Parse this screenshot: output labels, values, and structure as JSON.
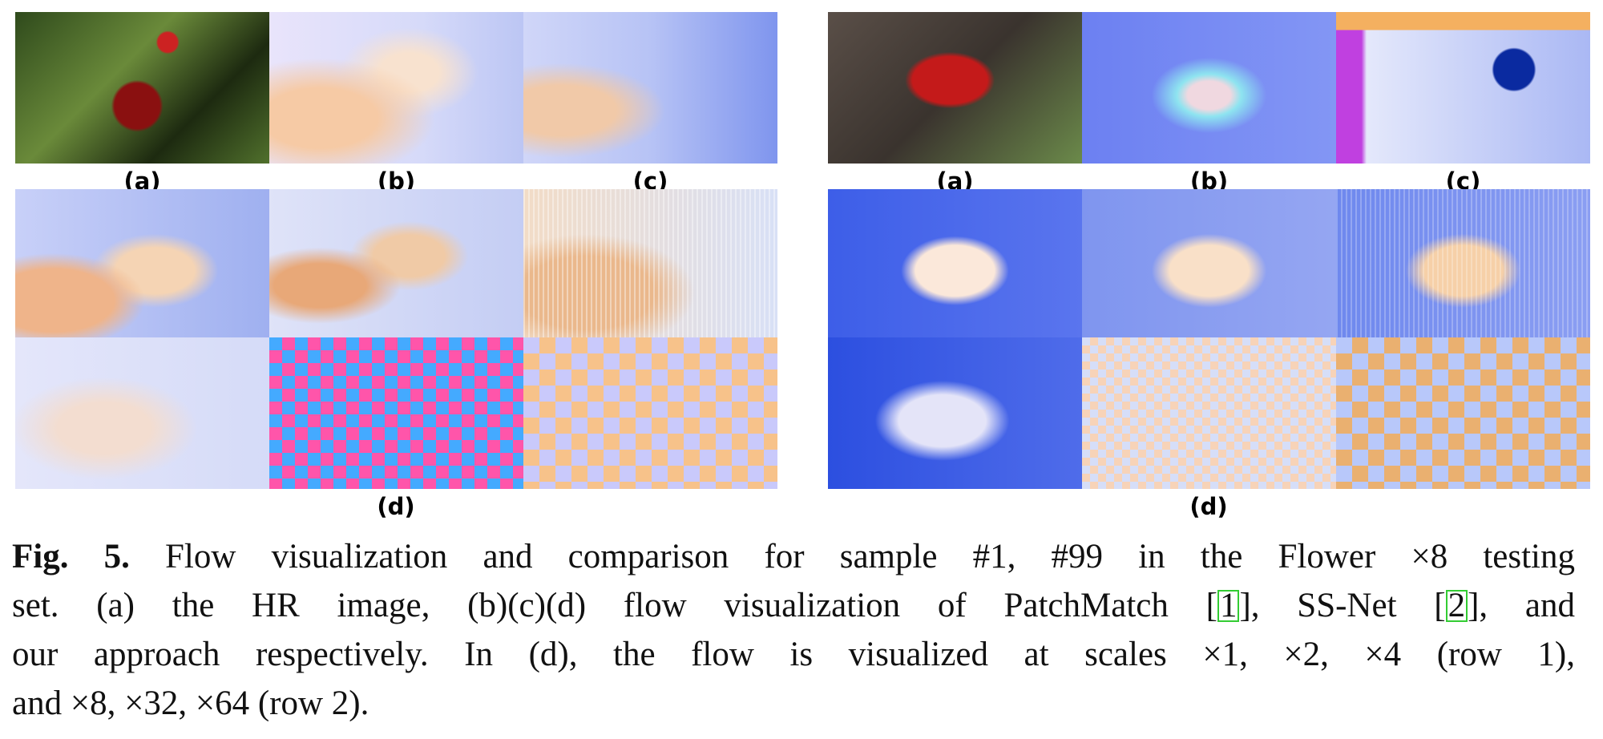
{
  "figure": {
    "panels": [
      {
        "top_labels": [
          "(a)",
          "(b)",
          "(c)"
        ],
        "bottom_label": "(d)"
      },
      {
        "top_labels": [
          "(a)",
          "(b)",
          "(c)"
        ],
        "bottom_label": "(d)"
      }
    ],
    "caption": {
      "label": "Fig. 5.",
      "lines": [
        [
          "Flow visualization and comparison for sample #1, #99 in the Flower ×8 testing"
        ],
        [
          "set. (a) the HR image, (b)(c)(d) flow visualization of PatchMatch [",
          "1",
          "], SS-Net [",
          "2",
          "], and"
        ],
        [
          "our approach respectively. In (d), the flow is visualized at scales ×1, ×2, ×4 (row 1),"
        ],
        [
          "and ×8, ×32, ×64 (row 2)."
        ]
      ]
    }
  }
}
